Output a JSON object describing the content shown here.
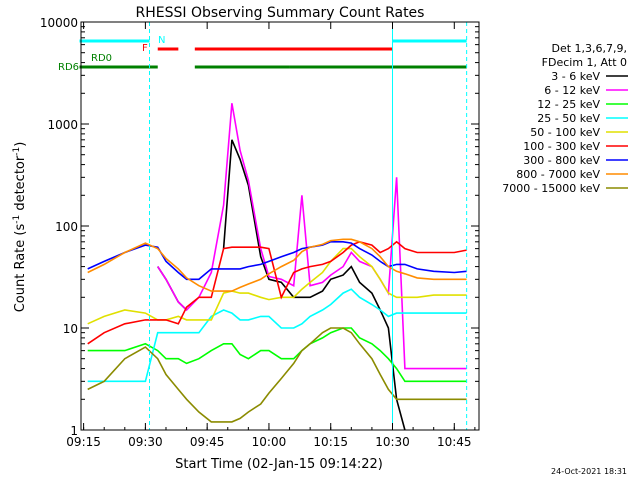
{
  "title": "RHESSI Observing Summary Count Rates",
  "xlabel": "Start Time (02-Jan-15 09:14:22)",
  "ylabel_main": "Count Rate (s",
  "ylabel_sup": "-1",
  "ylabel_mid": " detector",
  "ylabel_sup2": "-1",
  "ylabel_end": ")",
  "footer_date": "24-Oct-2021 18:31",
  "legend_header": [
    "Det 1,3,6,7,9,",
    "FDecim 1, Att 0"
  ],
  "flags": {
    "N": "N",
    "F": "F",
    "RD0": "RD0",
    "RD6": "RD6"
  },
  "colors": {
    "s3_6": "#000000",
    "s6_12": "#ff00ff",
    "s12_25": "#00ff00",
    "s25_50": "#00ffff",
    "s50_100": "#e0e000",
    "s100_300": "#ff0000",
    "s300_800": "#0000ff",
    "s800_7000": "#ff8c00",
    "s7000_15000": "#8b8b00",
    "flag_N": "#00ffff",
    "flag_F": "#ff0000",
    "flag_RD": "#008000"
  },
  "chart_data": {
    "type": "line",
    "title": "RHESSI Observing Summary Count Rates",
    "xlabel": "Start Time (02-Jan-15 09:14:22)",
    "ylabel": "Count Rate (s-1 detector-1)",
    "yscale": "log",
    "ylim": [
      1,
      10000
    ],
    "xlim": [
      "09:15",
      "10:50"
    ],
    "x_ticks": [
      "09:15",
      "09:30",
      "09:45",
      "10:00",
      "10:15",
      "10:30",
      "10:45"
    ],
    "y_ticks": [
      "1",
      "10",
      "100",
      "1000",
      "10000"
    ],
    "x": [
      "09:14",
      "09:16",
      "09:20",
      "09:25",
      "09:30",
      "09:33",
      "09:35",
      "09:38",
      "09:40",
      "09:43",
      "09:46",
      "09:49",
      "09:51",
      "09:53",
      "09:55",
      "09:58",
      "10:00",
      "10:03",
      "10:06",
      "10:08",
      "10:10",
      "10:13",
      "10:15",
      "10:18",
      "10:20",
      "10:22",
      "10:25",
      "10:27",
      "10:29",
      "10:31",
      "10:33",
      "10:36",
      "10:40",
      "10:45",
      "10:48"
    ],
    "series": [
      {
        "name": "3 - 6 keV",
        "values": [
          null,
          null,
          null,
          null,
          null,
          40,
          30,
          18,
          15,
          null,
          null,
          60,
          700,
          450,
          250,
          50,
          30,
          28,
          20,
          20,
          20,
          23,
          30,
          33,
          40,
          28,
          22,
          15,
          10,
          2,
          1,
          null,
          null,
          null,
          null
        ]
      },
      {
        "name": "6 - 12 keV",
        "values": [
          null,
          null,
          null,
          null,
          null,
          40,
          30,
          18,
          15,
          20,
          35,
          160,
          1600,
          550,
          280,
          60,
          32,
          30,
          26,
          200,
          26,
          28,
          33,
          40,
          55,
          45,
          40,
          30,
          22,
          300,
          4,
          4,
          4,
          4,
          4
        ]
      },
      {
        "name": "12 - 25 keV",
        "values": [
          null,
          6,
          6,
          6,
          7,
          6,
          5,
          5,
          4.5,
          5,
          6,
          7,
          7,
          5.5,
          5,
          6,
          6,
          5,
          5,
          6,
          7,
          8,
          9,
          10,
          10,
          8,
          7,
          6,
          5,
          4,
          3,
          3,
          3,
          3,
          3
        ]
      },
      {
        "name": "25 - 50 keV",
        "values": [
          null,
          3,
          3,
          3,
          3,
          9,
          9,
          9,
          9,
          9,
          13,
          15,
          14,
          12,
          12,
          13,
          13,
          10,
          10,
          11,
          13,
          15,
          17,
          22,
          24,
          20,
          17,
          15,
          13,
          14,
          14,
          14,
          14,
          14,
          14
        ]
      },
      {
        "name": "50 - 100 keV",
        "values": [
          null,
          11,
          13,
          15,
          14,
          12,
          12,
          13,
          12,
          12,
          12,
          22,
          23,
          22,
          22,
          20,
          19,
          20,
          20,
          24,
          28,
          35,
          45,
          60,
          60,
          50,
          40,
          30,
          22,
          20,
          20,
          20,
          21,
          21,
          21
        ]
      },
      {
        "name": "100 - 300 keV",
        "values": [
          null,
          7,
          9,
          11,
          12,
          12,
          12,
          11,
          16,
          20,
          20,
          60,
          62,
          62,
          62,
          62,
          60,
          20,
          35,
          38,
          40,
          42,
          45,
          55,
          65,
          70,
          65,
          55,
          60,
          70,
          60,
          55,
          55,
          55,
          58
        ]
      },
      {
        "name": "300 - 800 keV",
        "values": [
          null,
          38,
          45,
          55,
          65,
          62,
          45,
          35,
          30,
          30,
          38,
          38,
          38,
          38,
          40,
          42,
          45,
          50,
          55,
          60,
          62,
          65,
          70,
          70,
          68,
          60,
          52,
          45,
          40,
          42,
          42,
          38,
          36,
          35,
          36
        ]
      },
      {
        "name": "800 - 7000 keV",
        "values": [
          null,
          35,
          42,
          55,
          68,
          60,
          48,
          38,
          31,
          26,
          23,
          23,
          23,
          25,
          27,
          30,
          34,
          40,
          46,
          56,
          62,
          66,
          72,
          74,
          74,
          70,
          60,
          50,
          40,
          36,
          34,
          31,
          30,
          30,
          30
        ]
      },
      {
        "name": "7000 - 15000 keV",
        "values": [
          null,
          2.5,
          3,
          5,
          6.5,
          5,
          3.5,
          2.5,
          2,
          1.5,
          1.2,
          1.2,
          1.2,
          1.3,
          1.5,
          1.8,
          2.3,
          3.2,
          4.5,
          6,
          7,
          9,
          10,
          10,
          9,
          7,
          5,
          3.5,
          2.5,
          2,
          2,
          2,
          2,
          2,
          2
        ]
      }
    ],
    "attenuator_flags": [
      {
        "name": "N",
        "start": "09:14",
        "end": "09:31"
      },
      {
        "name": "N",
        "start": "10:30",
        "end": "10:48"
      },
      {
        "name": "F",
        "start": "09:33",
        "end": "09:38"
      },
      {
        "name": "F",
        "start": "09:42",
        "end": "10:30"
      },
      {
        "name": "RD0",
        "start": "09:14",
        "end": "10:48"
      },
      {
        "name": "RD6",
        "start": "09:14",
        "end": "10:48"
      }
    ],
    "grid": false,
    "legend": "right"
  }
}
